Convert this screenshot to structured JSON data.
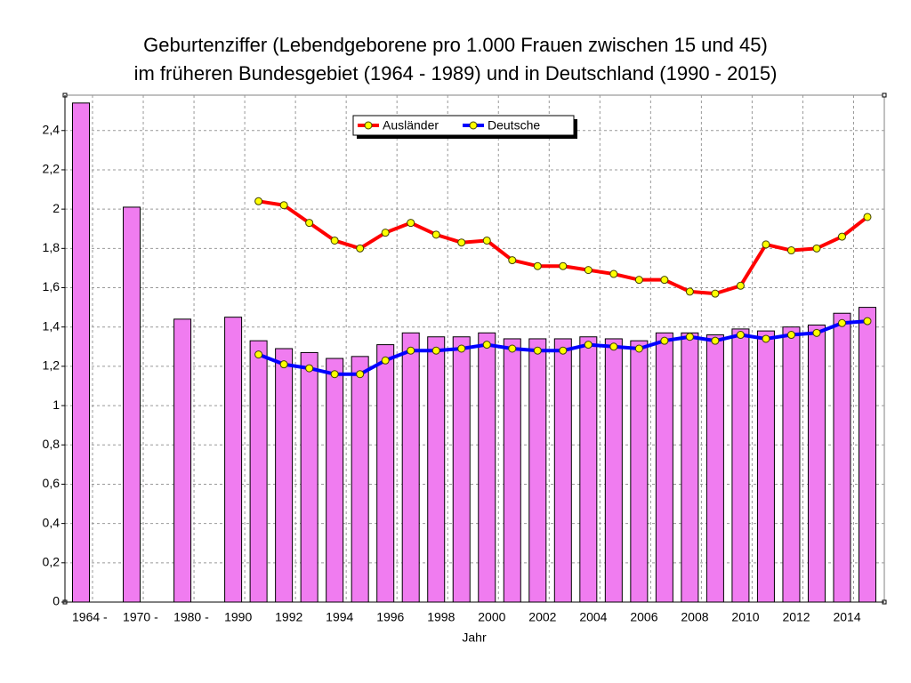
{
  "chart_data": {
    "type": "bar",
    "title": [
      "Geburtenziffer (Lebendgeborene pro 1.000 Frauen zwischen 15 und 45)",
      "im früheren Bundesgebiet (1964 - 1989) und in Deutschland (1990 - 2015)"
    ],
    "x_label": "Jahr",
    "categories": [
      "1964 -",
      null,
      "1970 -",
      null,
      "1980 -",
      null,
      "1990",
      null,
      "1992",
      null,
      "1994",
      null,
      "1996",
      null,
      "1998",
      null,
      "2000",
      null,
      "2002",
      null,
      "2004",
      null,
      "2006",
      null,
      "2008",
      null,
      "2010",
      null,
      "2012",
      null,
      "2014",
      null
    ],
    "values": [
      2.54,
      null,
      2.01,
      null,
      1.44,
      null,
      1.45,
      1.33,
      1.29,
      1.27,
      1.24,
      1.25,
      1.31,
      1.37,
      1.35,
      1.35,
      1.37,
      1.34,
      1.34,
      1.34,
      1.35,
      1.34,
      1.33,
      1.37,
      1.37,
      1.36,
      1.39,
      1.38,
      1.4,
      1.41,
      1.47,
      1.5
    ],
    "color": "#f07cf0",
    "series": [
      {
        "name": "Ausländer",
        "color": "#ff0000",
        "values": [
          null,
          null,
          null,
          null,
          null,
          null,
          null,
          2.04,
          2.02,
          1.93,
          1.84,
          1.8,
          1.88,
          1.93,
          1.87,
          1.83,
          1.84,
          1.74,
          1.71,
          1.71,
          1.69,
          1.67,
          1.64,
          1.64,
          1.58,
          1.57,
          1.61,
          1.82,
          1.79,
          1.8,
          1.86,
          1.96
        ]
      },
      {
        "name": "Deutsche",
        "color": "#0000ff",
        "values": [
          null,
          null,
          null,
          null,
          null,
          null,
          null,
          1.26,
          1.21,
          1.19,
          1.16,
          1.16,
          1.23,
          1.28,
          1.28,
          1.29,
          1.31,
          1.29,
          1.28,
          1.28,
          1.31,
          1.3,
          1.29,
          1.33,
          1.35,
          1.33,
          1.36,
          1.34,
          1.36,
          1.37,
          1.42,
          1.43
        ]
      }
    ],
    "ylim": [
      0,
      2.58
    ],
    "yticks": [
      0,
      {
        "value": 0.2,
        "label": "0,2"
      },
      {
        "value": 0.4,
        "label": "0,4"
      },
      {
        "value": 0.6,
        "label": "0,6"
      },
      {
        "value": 0.8,
        "label": "0,8"
      },
      1,
      {
        "value": 1.2,
        "label": "1,2"
      },
      {
        "value": 1.4,
        "label": "1,4"
      },
      {
        "value": 1.6,
        "label": "1,6"
      },
      {
        "value": 1.8,
        "label": "1,8"
      },
      2,
      {
        "value": 2.2,
        "label": "2,2"
      },
      {
        "value": 2.4,
        "label": "2,4"
      }
    ],
    "grid": true
  }
}
